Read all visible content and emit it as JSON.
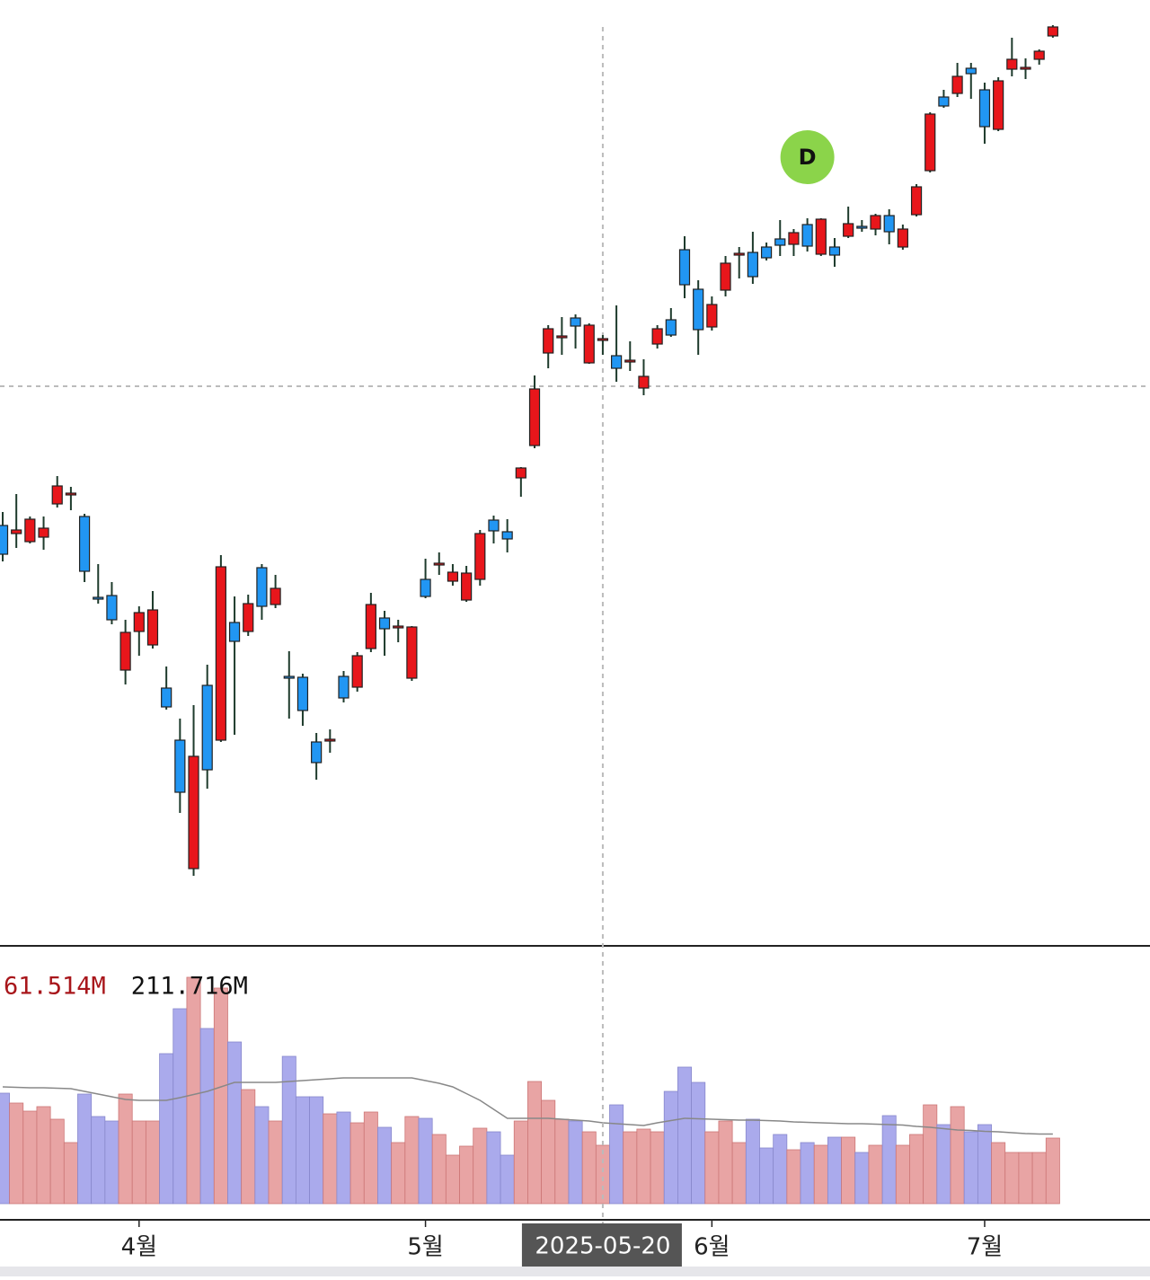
{
  "chart_data": {
    "type": "candlestick",
    "categories": [
      null,
      null,
      null,
      null,
      null,
      null,
      null,
      null,
      null,
      null,
      "4월",
      null,
      null,
      null,
      null,
      null,
      null,
      null,
      null,
      null,
      null,
      null,
      null,
      null,
      null,
      null,
      null,
      null,
      null,
      null,
      null,
      "5월",
      null,
      null,
      null,
      null,
      null,
      null,
      null,
      null,
      null,
      null,
      null,
      null,
      "2025-05-20",
      null,
      null,
      null,
      null,
      null,
      null,
      null,
      "6월",
      null,
      null,
      null,
      null,
      null,
      null,
      null,
      null,
      null,
      null,
      null,
      null,
      null,
      null,
      null,
      null,
      null,
      null,
      null,
      "7월",
      null,
      null,
      null,
      null,
      null
    ],
    "open": [
      2715,
      2706,
      2697,
      2702,
      2739,
      2749,
      2725,
      2635,
      2637,
      2554,
      2597,
      2582,
      2534,
      2476,
      2333,
      2537,
      2476,
      2607,
      2597,
      2668,
      2627,
      2547,
      2546,
      2474,
      2475,
      2547,
      2535,
      2578,
      2612,
      2601,
      2545,
      2655,
      2671,
      2653,
      2632,
      2655,
      2721,
      2708,
      2768,
      2804,
      2907,
      2924,
      2946,
      2896,
      2921,
      2904,
      2897,
      2868,
      2917,
      2944,
      3022,
      2978,
      2936,
      2977,
      3016,
      3019,
      3025,
      3034,
      3028,
      3050,
      3017,
      3025,
      3037,
      3048,
      3045,
      3060,
      3025,
      3061,
      3110,
      3192,
      3196,
      3224,
      3200,
      3156,
      3223,
      3223,
      3234,
      3260
    ],
    "high": [
      2730,
      2750,
      2725,
      2725,
      2770,
      2758,
      2728,
      2672,
      2652,
      2610,
      2625,
      2642,
      2558,
      2500,
      2515,
      2560,
      2682,
      2636,
      2638,
      2672,
      2660,
      2575,
      2550,
      2484,
      2488,
      2553,
      2574,
      2640,
      2620,
      2610,
      2603,
      2678,
      2685,
      2672,
      2670,
      2710,
      2726,
      2722,
      2780,
      2882,
      2938,
      2947,
      2950,
      2940,
      2927,
      2960,
      2920,
      2900,
      2938,
      2957,
      3037,
      2988,
      2970,
      3015,
      3025,
      3042,
      3030,
      3055,
      3045,
      3057,
      3057,
      3035,
      3070,
      3055,
      3062,
      3067,
      3050,
      3095,
      3175,
      3200,
      3230,
      3230,
      3208,
      3214,
      3258,
      3235,
      3245,
      3272
    ],
    "low": [
      2675,
      2690,
      2695,
      2688,
      2735,
      2732,
      2652,
      2628,
      2605,
      2538,
      2570,
      2578,
      2510,
      2395,
      2325,
      2422,
      2474,
      2482,
      2592,
      2610,
      2623,
      2500,
      2492,
      2432,
      2462,
      2518,
      2530,
      2574,
      2570,
      2585,
      2542,
      2634,
      2660,
      2648,
      2630,
      2648,
      2695,
      2685,
      2747,
      2801,
      2890,
      2905,
      2912,
      2895,
      2905,
      2875,
      2887,
      2860,
      2912,
      2925,
      2968,
      2905,
      2932,
      2970,
      2990,
      2984,
      3010,
      3015,
      3015,
      3020,
      3015,
      3003,
      3035,
      3042,
      3038,
      3028,
      3022,
      3059,
      3108,
      3180,
      3192,
      3190,
      3140,
      3154,
      3215,
      3212,
      3228,
      3258
    ],
    "close": [
      2683,
      2710,
      2722,
      2712,
      2759,
      2751,
      2664,
      2633,
      2610,
      2596,
      2618,
      2621,
      2513,
      2418,
      2458,
      2443,
      2669,
      2586,
      2628,
      2625,
      2645,
      2545,
      2509,
      2451,
      2477,
      2523,
      2570,
      2627,
      2600,
      2603,
      2602,
      2636,
      2673,
      2663,
      2662,
      2706,
      2709,
      2700,
      2779,
      2867,
      2934,
      2926,
      2937,
      2938,
      2923,
      2890,
      2899,
      2881,
      2934,
      2927,
      2983,
      2933,
      2961,
      3007,
      3018,
      2992,
      3013,
      3027,
      3041,
      3026,
      3056,
      3016,
      3051,
      3046,
      3060,
      3042,
      3045,
      3092,
      3173,
      3182,
      3215,
      3218,
      3159,
      3210,
      3234,
      3225,
      3243,
      3270
    ],
    "up_color": "#e8161b",
    "down_color": "#2196f3",
    "ylim": [
      2247,
      3300
    ],
    "volume": {
      "values": [
        246,
        224,
        206,
        216,
        188,
        136,
        244,
        194,
        184,
        244,
        184,
        184,
        334,
        434,
        504,
        390,
        480,
        360,
        254,
        216,
        184,
        328,
        238,
        238,
        200,
        204,
        180,
        204,
        170,
        136,
        194,
        190,
        154,
        108,
        128,
        168,
        160,
        108,
        184,
        272,
        230,
        188,
        184,
        160,
        130,
        220,
        160,
        166,
        160,
        250,
        304,
        270,
        160,
        184,
        136,
        188,
        124,
        154,
        120,
        136,
        130,
        148,
        148,
        114,
        130,
        196,
        130,
        154,
        220,
        176,
        216,
        160,
        176,
        136,
        114,
        114,
        114,
        146
      ],
      "ma": [
        260,
        259,
        258,
        258,
        257,
        256,
        250,
        244,
        238,
        232,
        230,
        230,
        230,
        236,
        243,
        250,
        260,
        270,
        270,
        270,
        270,
        272,
        274,
        276,
        278,
        280,
        280,
        280,
        280,
        280,
        280,
        274,
        268,
        260,
        245,
        230,
        210,
        190,
        190,
        190,
        190,
        188,
        186,
        184,
        180,
        178,
        176,
        174,
        180,
        185,
        190,
        189,
        188,
        187,
        186,
        186,
        185,
        184,
        182,
        181,
        180,
        179,
        178,
        178,
        177,
        176,
        175,
        172,
        170,
        167,
        164,
        163,
        161,
        160,
        158,
        156,
        155,
        155
      ],
      "ylim": [
        0,
        560
      ],
      "up_color": "#e8a4a4",
      "down_color": "#aaaaec",
      "ma_color": "#888888"
    },
    "volume_labels": [
      {
        "text": "61.514M",
        "color": "#a8161b"
      },
      {
        "text": "211.716M",
        "color": "#111111"
      }
    ],
    "crosshair": {
      "category": "2025-05-20",
      "price": 2870
    },
    "annotations": [
      {
        "text": "D",
        "index": 59,
        "price": 3125,
        "color": "#8bd44a"
      }
    ]
  }
}
